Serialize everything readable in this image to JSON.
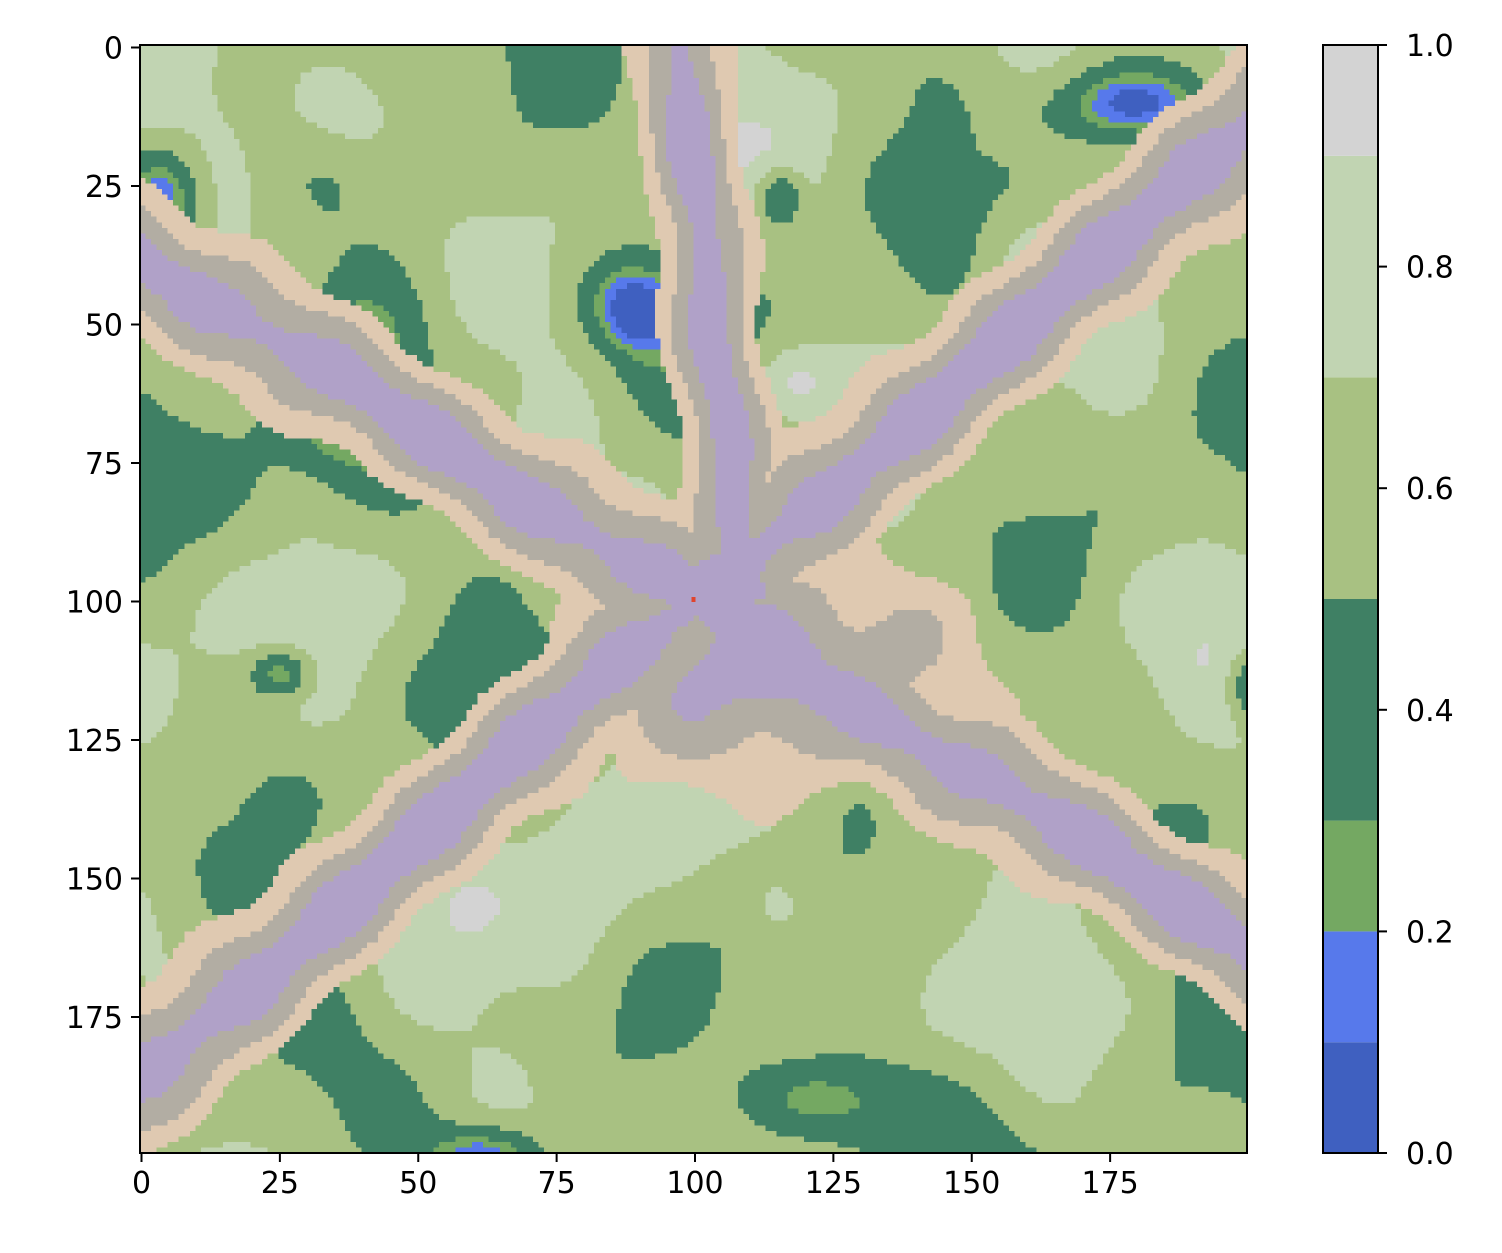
{
  "chart_data": {
    "type": "heatmap",
    "grid_size": [
      200,
      200
    ],
    "xlim": [
      0,
      200
    ],
    "ylim": [
      200,
      0
    ],
    "x_ticks": [
      "0",
      "25",
      "50",
      "75",
      "100",
      "125",
      "150",
      "175"
    ],
    "y_ticks": [
      "0",
      "25",
      "50",
      "75",
      "100",
      "125",
      "150",
      "175"
    ],
    "colorbar": {
      "ticks": [
        "0.0",
        "0.2",
        "0.4",
        "0.6",
        "0.8",
        "1.0"
      ],
      "range": [
        0,
        1
      ],
      "bins": [
        {
          "min": 0.0,
          "max": 0.1,
          "color": "#3f60c0"
        },
        {
          "min": 0.1,
          "max": 0.2,
          "color": "#5779eb"
        },
        {
          "min": 0.2,
          "max": 0.3,
          "color": "#74a862"
        },
        {
          "min": 0.3,
          "max": 0.5,
          "color": "#3f8064"
        },
        {
          "min": 0.5,
          "max": 0.7,
          "color": "#a8c182"
        },
        {
          "min": 0.7,
          "max": 0.9,
          "color": "#c1d4b2"
        },
        {
          "min": 0.9,
          "max": 1.0,
          "color": "#d3d3d3"
        }
      ]
    },
    "overlay_colors": {
      "ridge_sand": "#dfc9b1",
      "ridge_gray": "#b2ada3",
      "ridge_lavender": "#b0a1c8"
    },
    "marker": {
      "x": 100,
      "y": 100,
      "color": "#e0442e"
    }
  }
}
